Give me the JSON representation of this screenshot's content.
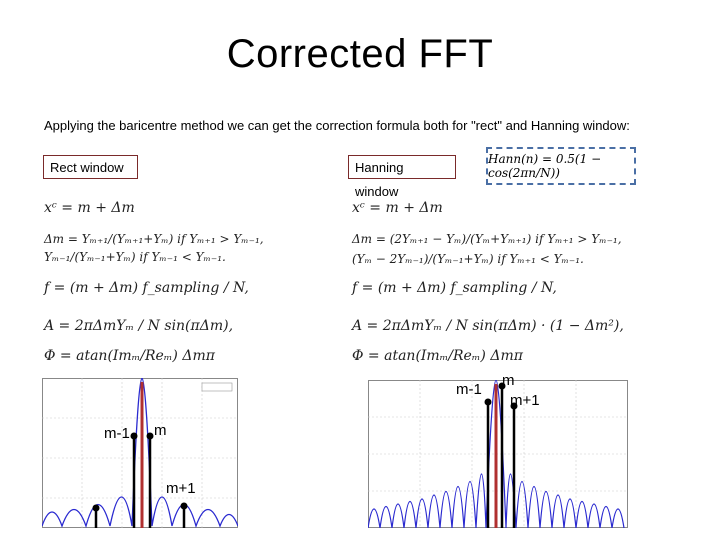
{
  "slide": {
    "title": "Corrected FFT",
    "subtitle": "Applying the baricentre method we can get the correction formula both for \"rect\" and Hanning window:"
  },
  "rect_window": {
    "label": "Rect window",
    "formulas": {
      "xc": "xᶜ = m + Δm",
      "dm1": "Δm = Yₘ₊₁/(Yₘ₊₁+Yₘ)   if Yₘ₊₁ > Yₘ₋₁,",
      "dm2": "         Yₘ₋₁/(Yₘ₋₁+Yₘ)   if Yₘ₋₁ < Yₘ₋₁.",
      "f": "f = (m + Δm) f_sampling / N,",
      "A": "A = 2πΔmYₘ / N sin(πΔm),",
      "phi": "Φ = atan(Imₘ/Reₘ)    Δmπ"
    },
    "markers": {
      "left": "m-1",
      "center": "m",
      "right": "m+1"
    }
  },
  "hanning_window": {
    "label": "Hanning window",
    "definition": "Hann(n) = 0.5(1 − cos(2πn/N))",
    "formulas": {
      "xc": "xᶜ = m + Δm",
      "dm1": "Δm = (2Yₘ₊₁ − Yₘ)/(Yₘ+Yₘ₊₁)   if Yₘ₊₁ > Yₘ₋₁,",
      "dm2": "         (Yₘ − 2Yₘ₋₁)/(Yₘ₋₁+Yₘ)   if Yₘ₊₁ < Yₘ₋₁.",
      "f": "f = (m + Δm) f_sampling / N,",
      "A": "A = 2πΔmYₘ / N sin(πΔm) · (1 − Δm²),",
      "phi": "Φ = atan(Imₘ/Reₘ)    Δmπ"
    },
    "markers": {
      "left": "m-1",
      "center": "m",
      "right": "m+1"
    }
  },
  "colors": {
    "spectrum": "#2a2ad0",
    "peak": "#b03030",
    "box_border": "#7a2a2a",
    "dashed_border": "#4a6fa5"
  }
}
